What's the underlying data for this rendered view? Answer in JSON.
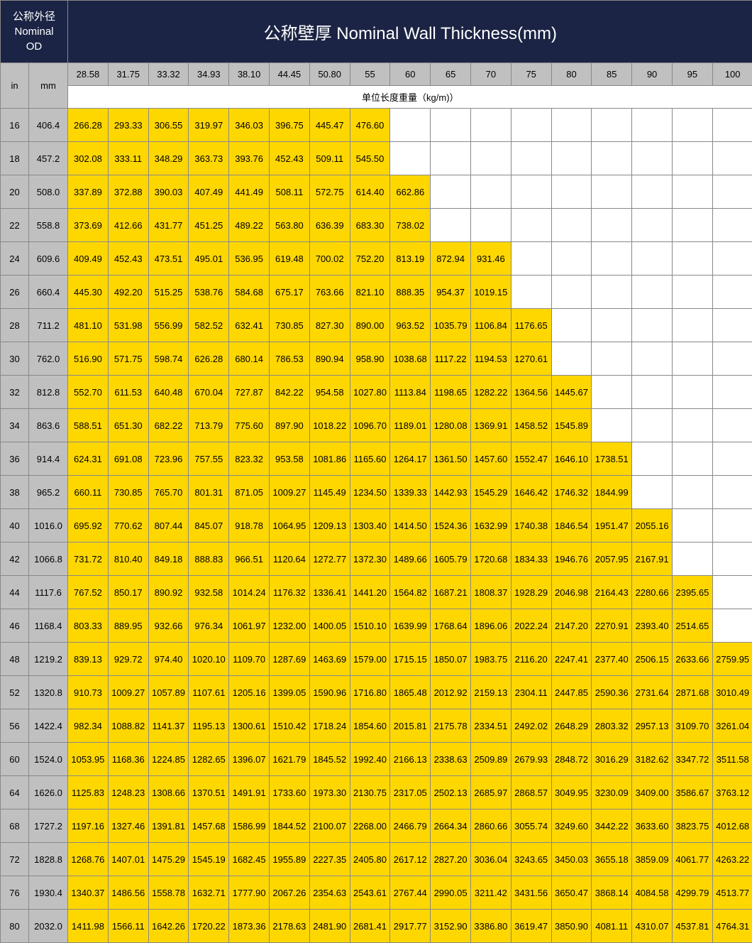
{
  "header": {
    "od_label_cn": "公称外径",
    "od_label_en1": "Nominal",
    "od_label_en2": "OD",
    "thickness_label": "公称壁厚 Nominal Wall Thickness(mm)",
    "unit_in": "in",
    "unit_mm": "mm",
    "weight_label": "单位长度重量（kg/m)）"
  },
  "thickness_cols": [
    "28.58",
    "31.75",
    "33.32",
    "34.93",
    "38.10",
    "44.45",
    "50.80",
    "55",
    "60",
    "65",
    "70",
    "75",
    "80",
    "85",
    "90",
    "95",
    "100"
  ],
  "rows": [
    {
      "in": "16",
      "mm": "406.4",
      "v": [
        "266.28",
        "293.33",
        "306.55",
        "319.97",
        "346.03",
        "396.75",
        "445.47",
        "476.60",
        "",
        "",
        "",
        "",
        "",
        "",
        "",
        "",
        ""
      ]
    },
    {
      "in": "18",
      "mm": "457.2",
      "v": [
        "302.08",
        "333.11",
        "348.29",
        "363.73",
        "393.76",
        "452.43",
        "509.11",
        "545.50",
        "",
        "",
        "",
        "",
        "",
        "",
        "",
        "",
        ""
      ]
    },
    {
      "in": "20",
      "mm": "508.0",
      "v": [
        "337.89",
        "372.88",
        "390.03",
        "407.49",
        "441.49",
        "508.11",
        "572.75",
        "614.40",
        "662.86",
        "",
        "",
        "",
        "",
        "",
        "",
        "",
        ""
      ]
    },
    {
      "in": "22",
      "mm": "558.8",
      "v": [
        "373.69",
        "412.66",
        "431.77",
        "451.25",
        "489.22",
        "563.80",
        "636.39",
        "683.30",
        "738.02",
        "",
        "",
        "",
        "",
        "",
        "",
        "",
        ""
      ]
    },
    {
      "in": "24",
      "mm": "609.6",
      "v": [
        "409.49",
        "452.43",
        "473.51",
        "495.01",
        "536.95",
        "619.48",
        "700.02",
        "752.20",
        "813.19",
        "872.94",
        "931.46",
        "",
        "",
        "",
        "",
        "",
        ""
      ]
    },
    {
      "in": "26",
      "mm": "660.4",
      "v": [
        "445.30",
        "492.20",
        "515.25",
        "538.76",
        "584.68",
        "675.17",
        "763.66",
        "821.10",
        "888.35",
        "954.37",
        "1019.15",
        "",
        "",
        "",
        "",
        "",
        ""
      ]
    },
    {
      "in": "28",
      "mm": "711.2",
      "v": [
        "481.10",
        "531.98",
        "556.99",
        "582.52",
        "632.41",
        "730.85",
        "827.30",
        "890.00",
        "963.52",
        "1035.79",
        "1106.84",
        "1176.65",
        "",
        "",
        "",
        "",
        ""
      ]
    },
    {
      "in": "30",
      "mm": "762.0",
      "v": [
        "516.90",
        "571.75",
        "598.74",
        "626.28",
        "680.14",
        "786.53",
        "890.94",
        "958.90",
        "1038.68",
        "1117.22",
        "1194.53",
        "1270.61",
        "",
        "",
        "",
        "",
        ""
      ]
    },
    {
      "in": "32",
      "mm": "812.8",
      "v": [
        "552.70",
        "611.53",
        "640.48",
        "670.04",
        "727.87",
        "842.22",
        "954.58",
        "1027.80",
        "1113.84",
        "1198.65",
        "1282.22",
        "1364.56",
        "1445.67",
        "",
        "",
        "",
        ""
      ]
    },
    {
      "in": "34",
      "mm": "863.6",
      "v": [
        "588.51",
        "651.30",
        "682.22",
        "713.79",
        "775.60",
        "897.90",
        "1018.22",
        "1096.70",
        "1189.01",
        "1280.08",
        "1369.91",
        "1458.52",
        "1545.89",
        "",
        "",
        "",
        ""
      ]
    },
    {
      "in": "36",
      "mm": "914.4",
      "v": [
        "624.31",
        "691.08",
        "723.96",
        "757.55",
        "823.32",
        "953.58",
        "1081.86",
        "1165.60",
        "1264.17",
        "1361.50",
        "1457.60",
        "1552.47",
        "1646.10",
        "1738.51",
        "",
        "",
        ""
      ]
    },
    {
      "in": "38",
      "mm": "965.2",
      "v": [
        "660.11",
        "730.85",
        "765.70",
        "801.31",
        "871.05",
        "1009.27",
        "1145.49",
        "1234.50",
        "1339.33",
        "1442.93",
        "1545.29",
        "1646.42",
        "1746.32",
        "1844.99",
        "",
        "",
        ""
      ]
    },
    {
      "in": "40",
      "mm": "1016.0",
      "v": [
        "695.92",
        "770.62",
        "807.44",
        "845.07",
        "918.78",
        "1064.95",
        "1209.13",
        "1303.40",
        "1414.50",
        "1524.36",
        "1632.99",
        "1740.38",
        "1846.54",
        "1951.47",
        "2055.16",
        "",
        ""
      ]
    },
    {
      "in": "42",
      "mm": "1066.8",
      "v": [
        "731.72",
        "810.40",
        "849.18",
        "888.83",
        "966.51",
        "1120.64",
        "1272.77",
        "1372.30",
        "1489.66",
        "1605.79",
        "1720.68",
        "1834.33",
        "1946.76",
        "2057.95",
        "2167.91",
        "",
        ""
      ]
    },
    {
      "in": "44",
      "mm": "1117.6",
      "v": [
        "767.52",
        "850.17",
        "890.92",
        "932.58",
        "1014.24",
        "1176.32",
        "1336.41",
        "1441.20",
        "1564.82",
        "1687.21",
        "1808.37",
        "1928.29",
        "2046.98",
        "2164.43",
        "2280.66",
        "2395.65",
        ""
      ]
    },
    {
      "in": "46",
      "mm": "1168.4",
      "v": [
        "803.33",
        "889.95",
        "932.66",
        "976.34",
        "1061.97",
        "1232.00",
        "1400.05",
        "1510.10",
        "1639.99",
        "1768.64",
        "1896.06",
        "2022.24",
        "2147.20",
        "2270.91",
        "2393.40",
        "2514.65",
        ""
      ]
    },
    {
      "in": "48",
      "mm": "1219.2",
      "v": [
        "839.13",
        "929.72",
        "974.40",
        "1020.10",
        "1109.70",
        "1287.69",
        "1463.69",
        "1579.00",
        "1715.15",
        "1850.07",
        "1983.75",
        "2116.20",
        "2247.41",
        "2377.40",
        "2506.15",
        "2633.66",
        "2759.95"
      ]
    },
    {
      "in": "52",
      "mm": "1320.8",
      "v": [
        "910.73",
        "1009.27",
        "1057.89",
        "1107.61",
        "1205.16",
        "1399.05",
        "1590.96",
        "1716.80",
        "1865.48",
        "2012.92",
        "2159.13",
        "2304.11",
        "2447.85",
        "2590.36",
        "2731.64",
        "2871.68",
        "3010.49"
      ]
    },
    {
      "in": "56",
      "mm": "1422.4",
      "v": [
        "982.34",
        "1088.82",
        "1141.37",
        "1195.13",
        "1300.61",
        "1510.42",
        "1718.24",
        "1854.60",
        "2015.81",
        "2175.78",
        "2334.51",
        "2492.02",
        "2648.29",
        "2803.32",
        "2957.13",
        "3109.70",
        "3261.04"
      ]
    },
    {
      "in": "60",
      "mm": "1524.0",
      "v": [
        "1053.95",
        "1168.36",
        "1224.85",
        "1282.65",
        "1396.07",
        "1621.79",
        "1845.52",
        "1992.40",
        "2166.13",
        "2338.63",
        "2509.89",
        "2679.93",
        "2848.72",
        "3016.29",
        "3182.62",
        "3347.72",
        "3511.58"
      ]
    },
    {
      "in": "64",
      "mm": "1626.0",
      "v": [
        "1125.83",
        "1248.23",
        "1308.66",
        "1370.51",
        "1491.91",
        "1733.60",
        "1973.30",
        "2130.75",
        "2317.05",
        "2502.13",
        "2685.97",
        "2868.57",
        "3049.95",
        "3230.09",
        "3409.00",
        "3586.67",
        "3763.12"
      ]
    },
    {
      "in": "68",
      "mm": "1727.2",
      "v": [
        "1197.16",
        "1327.46",
        "1391.81",
        "1457.68",
        "1586.99",
        "1844.52",
        "2100.07",
        "2268.00",
        "2466.79",
        "2664.34",
        "2860.66",
        "3055.74",
        "3249.60",
        "3442.22",
        "3633.60",
        "3823.75",
        "4012.68"
      ]
    },
    {
      "in": "72",
      "mm": "1828.8",
      "v": [
        "1268.76",
        "1407.01",
        "1475.29",
        "1545.19",
        "1682.45",
        "1955.89",
        "2227.35",
        "2405.80",
        "2617.12",
        "2827.20",
        "3036.04",
        "3243.65",
        "3450.03",
        "3655.18",
        "3859.09",
        "4061.77",
        "4263.22"
      ]
    },
    {
      "in": "76",
      "mm": "1930.4",
      "v": [
        "1340.37",
        "1486.56",
        "1558.78",
        "1632.71",
        "1777.90",
        "2067.26",
        "2354.63",
        "2543.61",
        "2767.44",
        "2990.05",
        "3211.42",
        "3431.56",
        "3650.47",
        "3868.14",
        "4084.58",
        "4299.79",
        "4513.77"
      ]
    },
    {
      "in": "80",
      "mm": "2032.0",
      "v": [
        "1411.98",
        "1566.11",
        "1642.26",
        "1720.22",
        "1873.36",
        "2178.63",
        "2481.90",
        "2681.41",
        "2917.77",
        "3152.90",
        "3386.80",
        "3619.47",
        "3850.90",
        "4081.11",
        "4310.07",
        "4537.81",
        "4764.31"
      ]
    }
  ],
  "colors": {
    "header_bg": "#1b2444",
    "label_bg": "#c0c0c0",
    "filled_bg": "#ffd700",
    "empty_bg": "#ffffff",
    "border": "#888888"
  }
}
